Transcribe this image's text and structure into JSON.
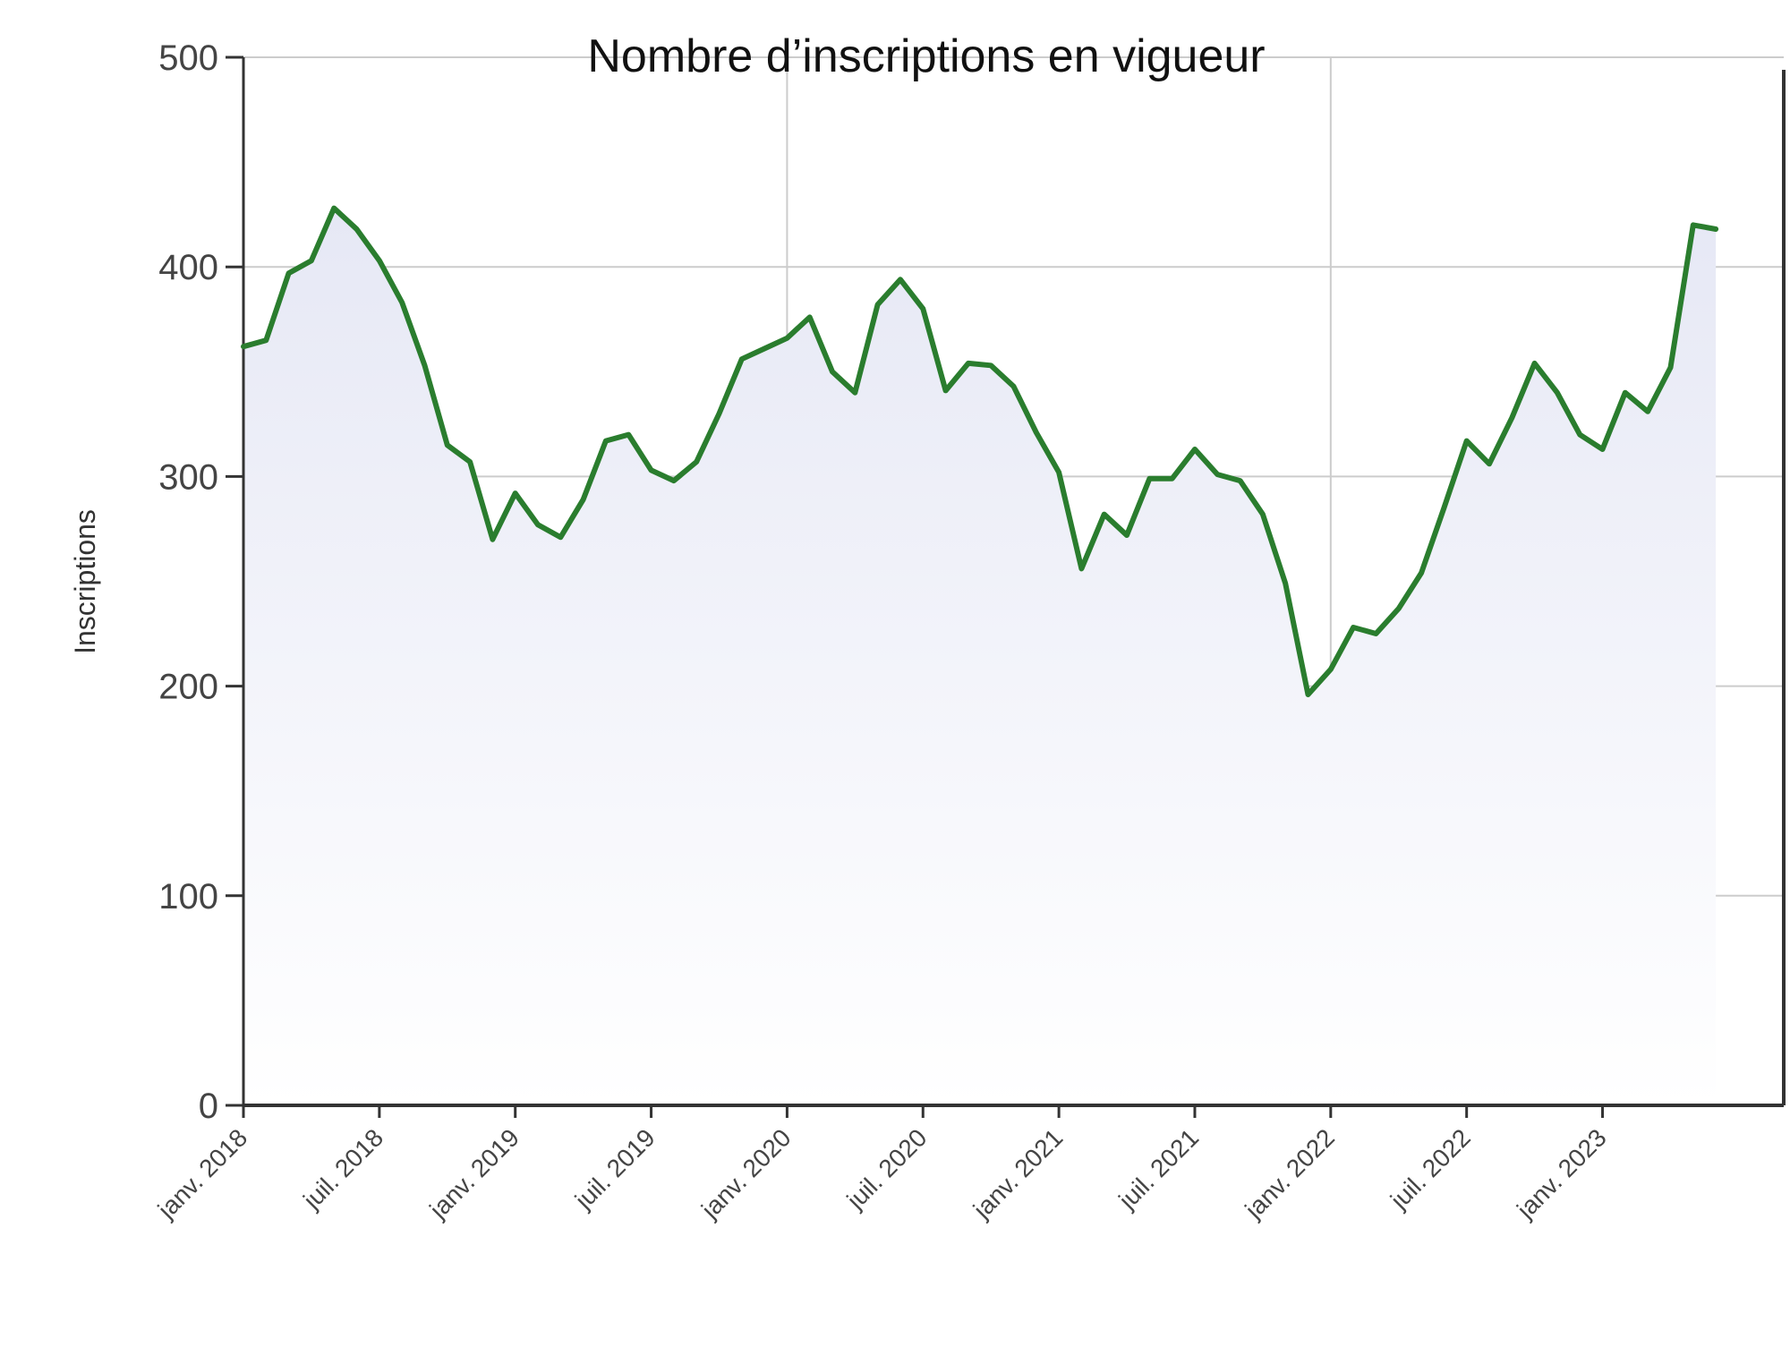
{
  "chart_data": {
    "type": "area",
    "title": "Nombre d’inscriptions en vigueur",
    "xlabel": "",
    "ylabel": "Inscriptions",
    "ylim": [
      0,
      500
    ],
    "yticks": [
      0,
      100,
      200,
      300,
      400,
      500
    ],
    "xlim": [
      "2018-01",
      "2023-09"
    ],
    "xtick_labels": [
      {
        "date": "2018-01",
        "label": "janv. 2018"
      },
      {
        "date": "2018-07",
        "label": "juil. 2018"
      },
      {
        "date": "2019-01",
        "label": "janv. 2019"
      },
      {
        "date": "2019-07",
        "label": "juil. 2019"
      },
      {
        "date": "2020-01",
        "label": "janv. 2020"
      },
      {
        "date": "2020-07",
        "label": "juil. 2020"
      },
      {
        "date": "2021-01",
        "label": "janv. 2021"
      },
      {
        "date": "2021-07",
        "label": "juil. 2021"
      },
      {
        "date": "2022-01",
        "label": "janv. 2022"
      },
      {
        "date": "2022-07",
        "label": "juil. 2022"
      },
      {
        "date": "2023-01",
        "label": "janv. 2023"
      }
    ],
    "x_gridlines": [
      "2020-01",
      "2022-01"
    ],
    "grid": true,
    "legend": "none",
    "colors": {
      "line": "#2a7d2e",
      "fill_top": "#e6e8f5",
      "fill_bottom": "#ffffff",
      "grid": "#cccccc",
      "axis": "#333333"
    },
    "series": [
      {
        "x": [
          "2018-01",
          "2018-02",
          "2018-03",
          "2018-04",
          "2018-05",
          "2018-06",
          "2018-07",
          "2018-08",
          "2018-09",
          "2018-10",
          "2018-11",
          "2018-12",
          "2019-01",
          "2019-02",
          "2019-03",
          "2019-04",
          "2019-05",
          "2019-06",
          "2019-07",
          "2019-08",
          "2019-09",
          "2019-10",
          "2019-11",
          "2019-12",
          "2020-01",
          "2020-02",
          "2020-03",
          "2020-04",
          "2020-05",
          "2020-06",
          "2020-07",
          "2020-08",
          "2020-09",
          "2020-10",
          "2020-11",
          "2020-12",
          "2021-01",
          "2021-02",
          "2021-03",
          "2021-04",
          "2021-05",
          "2021-06",
          "2021-07",
          "2021-08",
          "2021-09",
          "2021-10",
          "2021-11",
          "2021-12",
          "2022-01",
          "2022-02",
          "2022-03",
          "2022-04",
          "2022-05",
          "2022-06",
          "2022-07",
          "2022-08",
          "2022-09",
          "2022-10",
          "2022-11",
          "2022-12",
          "2023-01",
          "2023-02",
          "2023-03",
          "2023-04",
          "2023-05",
          "2023-06"
        ],
        "values": [
          362,
          365,
          397,
          403,
          428,
          418,
          403,
          383,
          353,
          315,
          307,
          270,
          292,
          277,
          271,
          289,
          317,
          320,
          303,
          298,
          307,
          330,
          356,
          361,
          366,
          376,
          350,
          340,
          382,
          394,
          380,
          341,
          354,
          353,
          343,
          321,
          302,
          256,
          282,
          272,
          299,
          299,
          313,
          301,
          298,
          282,
          249,
          196,
          208,
          228,
          225,
          237,
          254,
          285,
          317,
          306,
          328,
          354,
          340,
          320,
          313,
          340,
          331,
          352,
          420,
          418
        ]
      }
    ]
  }
}
